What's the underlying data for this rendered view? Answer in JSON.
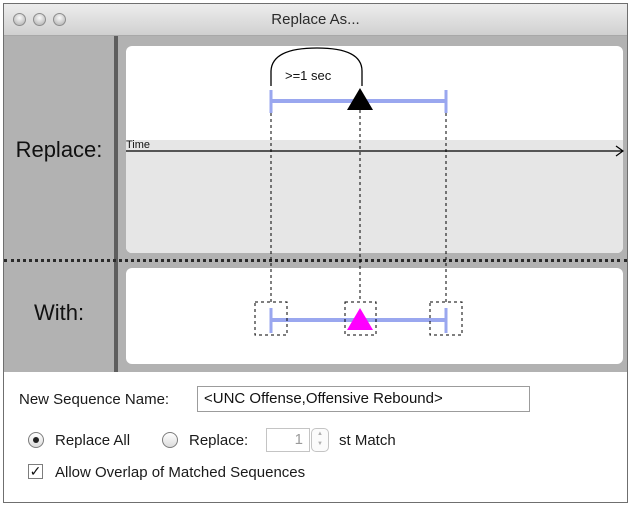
{
  "window": {
    "title": "Replace As..."
  },
  "labels": {
    "replace": "Replace:",
    "with": "With:"
  },
  "diagram": {
    "time_label": "Time",
    "duration_label": ">=1 sec",
    "interval_color": "#9aa7ef",
    "replace_marker_color": "#000000",
    "with_marker_color": "#ff00ff"
  },
  "form": {
    "sequence_name_label": "New Sequence Name:",
    "sequence_name_value": "<UNC Offense,Offensive Rebound>",
    "replace_all_label": "Replace All",
    "replace_all_selected": true,
    "replace_nth_label": "Replace:",
    "replace_nth_value": "1",
    "match_suffix": "st Match",
    "allow_overlap_label": "Allow Overlap of Matched Sequences",
    "allow_overlap_checked": true,
    "check_glyph": "✓"
  }
}
